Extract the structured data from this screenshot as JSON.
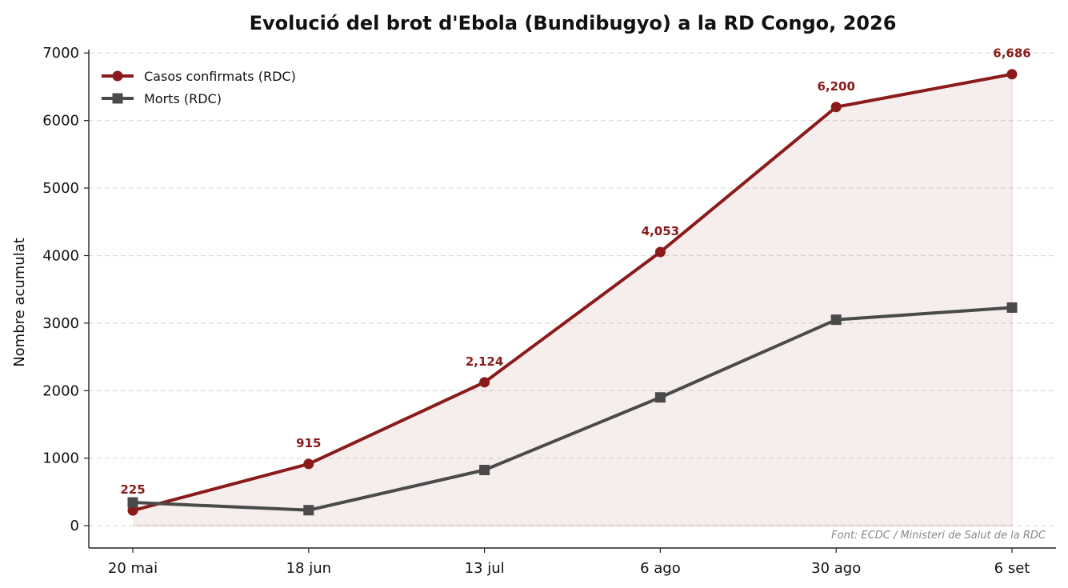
{
  "chart_data": {
    "type": "line",
    "title": "Evolució del brot d'Ebola (Bundibugyo) a la RD Congo, 2026",
    "xlabel": "",
    "ylabel": "Nombre acumulat",
    "categories": [
      "20 mai",
      "18 jun",
      "13 jul",
      "6 ago",
      "30 ago",
      "6 set"
    ],
    "ylim": [
      -330,
      7050
    ],
    "yticks": [
      0,
      1000,
      2000,
      3000,
      4000,
      5000,
      6000,
      7000
    ],
    "grid": "horizontal-dashed",
    "legend_position": "top-left",
    "series": [
      {
        "name": "Casos confirmats (RDC)",
        "values": [
          225,
          915,
          2124,
          4053,
          6200,
          6686
        ],
        "data_labels": [
          "225",
          "915",
          "2,124",
          "4,053",
          "6,200",
          "6,686"
        ],
        "color": "#8b1a1a",
        "marker": "circle",
        "area_fill": true
      },
      {
        "name": "Morts (RDC)",
        "values": [
          345,
          230,
          825,
          1900,
          3050,
          3230
        ],
        "color": "#4a4a4a",
        "marker": "square",
        "area_fill": false
      }
    ],
    "annotation": "Font: ECDC / Ministeri de Salut de la RDC"
  }
}
